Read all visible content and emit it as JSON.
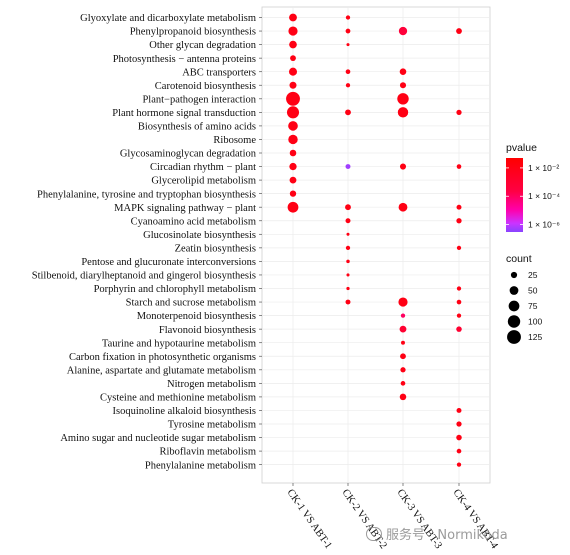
{
  "chart_data": {
    "type": "scatter",
    "comparisons": [
      "CK-1 VS ABT-1",
      "CK-2 VS ABT-2",
      "CK-3 VS ABT-3",
      "CK-4 VS ABT-4"
    ],
    "pathways": [
      "Glyoxylate and dicarboxylate metabolism",
      "Phenylpropanoid biosynthesis",
      "Other glycan degradation",
      "Photosynthesis − antenna proteins",
      "ABC transporters",
      "Carotenoid biosynthesis",
      "Plant−pathogen interaction",
      "Plant hormone signal transduction",
      "Biosynthesis of amino acids",
      "Ribosome",
      "Glycosaminoglycan degradation",
      "Circadian rhythm − plant",
      "Glycerolipid metabolism",
      "Phenylalanine, tyrosine and tryptophan biosynthesis",
      "MAPK signaling pathway − plant",
      "Cyanoamino acid metabolism",
      "Glucosinolate biosynthesis",
      "Zeatin biosynthesis",
      "Pentose and glucuronate interconversions",
      "Stilbenoid, diarylheptanoid and gingerol biosynthesis",
      "Porphyrin and chlorophyll metabolism",
      "Starch and sucrose metabolism",
      "Monoterpenoid biosynthesis",
      "Flavonoid biosynthesis",
      "Taurine and hypotaurine metabolism",
      "Carbon fixation in photosynthetic organisms",
      "Alanine, aspartate and glutamate metabolism",
      "Nitrogen metabolism",
      "Cysteine and methionine metabolism",
      "Isoquinoline alkaloid biosynthesis",
      "Tyrosine metabolism",
      "Amino sugar and nucleotide sugar metabolism",
      "Riboflavin metabolism",
      "Phenylalanine metabolism"
    ],
    "points": [
      {
        "comparison": 0,
        "pathway": 0,
        "count": 40,
        "pvalue": 0.01
      },
      {
        "comparison": 0,
        "pathway": 1,
        "count": 55,
        "pvalue": 0.01
      },
      {
        "comparison": 0,
        "pathway": 2,
        "count": 38,
        "pvalue": 0.01
      },
      {
        "comparison": 0,
        "pathway": 3,
        "count": 22,
        "pvalue": 0.01
      },
      {
        "comparison": 0,
        "pathway": 4,
        "count": 42,
        "pvalue": 0.01
      },
      {
        "comparison": 0,
        "pathway": 5,
        "count": 32,
        "pvalue": 0.01
      },
      {
        "comparison": 0,
        "pathway": 6,
        "count": 125,
        "pvalue": 0.01
      },
      {
        "comparison": 0,
        "pathway": 7,
        "count": 95,
        "pvalue": 0.01
      },
      {
        "comparison": 0,
        "pathway": 8,
        "count": 60,
        "pvalue": 0.01
      },
      {
        "comparison": 0,
        "pathway": 9,
        "count": 58,
        "pvalue": 0.01
      },
      {
        "comparison": 0,
        "pathway": 10,
        "count": 28,
        "pvalue": 0.01
      },
      {
        "comparison": 0,
        "pathway": 11,
        "count": 35,
        "pvalue": 0.01
      },
      {
        "comparison": 0,
        "pathway": 12,
        "count": 30,
        "pvalue": 0.01
      },
      {
        "comparison": 0,
        "pathway": 13,
        "count": 26,
        "pvalue": 0.01
      },
      {
        "comparison": 0,
        "pathway": 14,
        "count": 75,
        "pvalue": 0.01
      },
      {
        "comparison": 1,
        "pathway": 0,
        "count": 12,
        "pvalue": 0.01
      },
      {
        "comparison": 1,
        "pathway": 1,
        "count": 15,
        "pvalue": 0.01
      },
      {
        "comparison": 1,
        "pathway": 2,
        "count": 6,
        "pvalue": 0.01
      },
      {
        "comparison": 1,
        "pathway": 4,
        "count": 14,
        "pvalue": 0.01
      },
      {
        "comparison": 1,
        "pathway": 5,
        "count": 12,
        "pvalue": 0.01
      },
      {
        "comparison": 1,
        "pathway": 7,
        "count": 22,
        "pvalue": 0.01
      },
      {
        "comparison": 1,
        "pathway": 11,
        "count": 16,
        "pvalue": 5e-07
      },
      {
        "comparison": 1,
        "pathway": 14,
        "count": 22,
        "pvalue": 0.01
      },
      {
        "comparison": 1,
        "pathway": 15,
        "count": 16,
        "pvalue": 0.01
      },
      {
        "comparison": 1,
        "pathway": 16,
        "count": 6,
        "pvalue": 0.01
      },
      {
        "comparison": 1,
        "pathway": 17,
        "count": 12,
        "pvalue": 0.01
      },
      {
        "comparison": 1,
        "pathway": 18,
        "count": 8,
        "pvalue": 0.01
      },
      {
        "comparison": 1,
        "pathway": 19,
        "count": 6,
        "pvalue": 0.01
      },
      {
        "comparison": 1,
        "pathway": 20,
        "count": 7,
        "pvalue": 0.01
      },
      {
        "comparison": 1,
        "pathway": 21,
        "count": 16,
        "pvalue": 0.01
      },
      {
        "comparison": 2,
        "pathway": 1,
        "count": 45,
        "pvalue": 0.0005
      },
      {
        "comparison": 2,
        "pathway": 4,
        "count": 28,
        "pvalue": 0.01
      },
      {
        "comparison": 2,
        "pathway": 5,
        "count": 24,
        "pvalue": 0.01
      },
      {
        "comparison": 2,
        "pathway": 6,
        "count": 85,
        "pvalue": 0.01
      },
      {
        "comparison": 2,
        "pathway": 7,
        "count": 70,
        "pvalue": 0.01
      },
      {
        "comparison": 2,
        "pathway": 11,
        "count": 24,
        "pvalue": 0.01
      },
      {
        "comparison": 2,
        "pathway": 14,
        "count": 50,
        "pvalue": 0.01
      },
      {
        "comparison": 2,
        "pathway": 21,
        "count": 55,
        "pvalue": 0.01
      },
      {
        "comparison": 2,
        "pathway": 22,
        "count": 12,
        "pvalue": 0.0001
      },
      {
        "comparison": 2,
        "pathway": 23,
        "count": 30,
        "pvalue": 0.001
      },
      {
        "comparison": 2,
        "pathway": 24,
        "count": 10,
        "pvalue": 0.01
      },
      {
        "comparison": 2,
        "pathway": 25,
        "count": 22,
        "pvalue": 0.01
      },
      {
        "comparison": 2,
        "pathway": 26,
        "count": 18,
        "pvalue": 0.01
      },
      {
        "comparison": 2,
        "pathway": 27,
        "count": 14,
        "pvalue": 0.01
      },
      {
        "comparison": 2,
        "pathway": 28,
        "count": 28,
        "pvalue": 0.01
      },
      {
        "comparison": 3,
        "pathway": 1,
        "count": 22,
        "pvalue": 0.01
      },
      {
        "comparison": 3,
        "pathway": 7,
        "count": 18,
        "pvalue": 0.01
      },
      {
        "comparison": 3,
        "pathway": 11,
        "count": 14,
        "pvalue": 0.01
      },
      {
        "comparison": 3,
        "pathway": 14,
        "count": 16,
        "pvalue": 0.01
      },
      {
        "comparison": 3,
        "pathway": 15,
        "count": 18,
        "pvalue": 0.01
      },
      {
        "comparison": 3,
        "pathway": 17,
        "count": 12,
        "pvalue": 0.01
      },
      {
        "comparison": 3,
        "pathway": 20,
        "count": 12,
        "pvalue": 0.01
      },
      {
        "comparison": 3,
        "pathway": 21,
        "count": 14,
        "pvalue": 0.01
      },
      {
        "comparison": 3,
        "pathway": 22,
        "count": 12,
        "pvalue": 0.01
      },
      {
        "comparison": 3,
        "pathway": 23,
        "count": 20,
        "pvalue": 0.001
      },
      {
        "comparison": 3,
        "pathway": 29,
        "count": 16,
        "pvalue": 0.01
      },
      {
        "comparison": 3,
        "pathway": 30,
        "count": 18,
        "pvalue": 0.01
      },
      {
        "comparison": 3,
        "pathway": 31,
        "count": 20,
        "pvalue": 0.01
      },
      {
        "comparison": 3,
        "pathway": 32,
        "count": 14,
        "pvalue": 0.01
      },
      {
        "comparison": 3,
        "pathway": 33,
        "count": 12,
        "pvalue": 0.01
      }
    ],
    "color_legend": {
      "title": "pvalue",
      "scale": "log",
      "ticks": [
        "1 × 10⁻²",
        "1 × 10⁻⁴",
        "1 × 10⁻⁶"
      ],
      "tick_values": [
        0.01,
        0.0001,
        1e-06
      ],
      "range": [
        3e-07,
        0.05
      ],
      "colors": [
        "#ff0000",
        "#ff0066",
        "#ff00aa",
        "#cc33ff",
        "#8844ff"
      ]
    },
    "size_legend": {
      "title": "count",
      "labels": [
        "25",
        "50",
        "75",
        "100",
        "125"
      ],
      "values": [
        25,
        50,
        75,
        100,
        125
      ]
    },
    "grid": true,
    "legend_position": "right"
  },
  "watermark": {
    "text": "服务号 · Normikoda",
    "icon": "wechat-logo-icon"
  }
}
